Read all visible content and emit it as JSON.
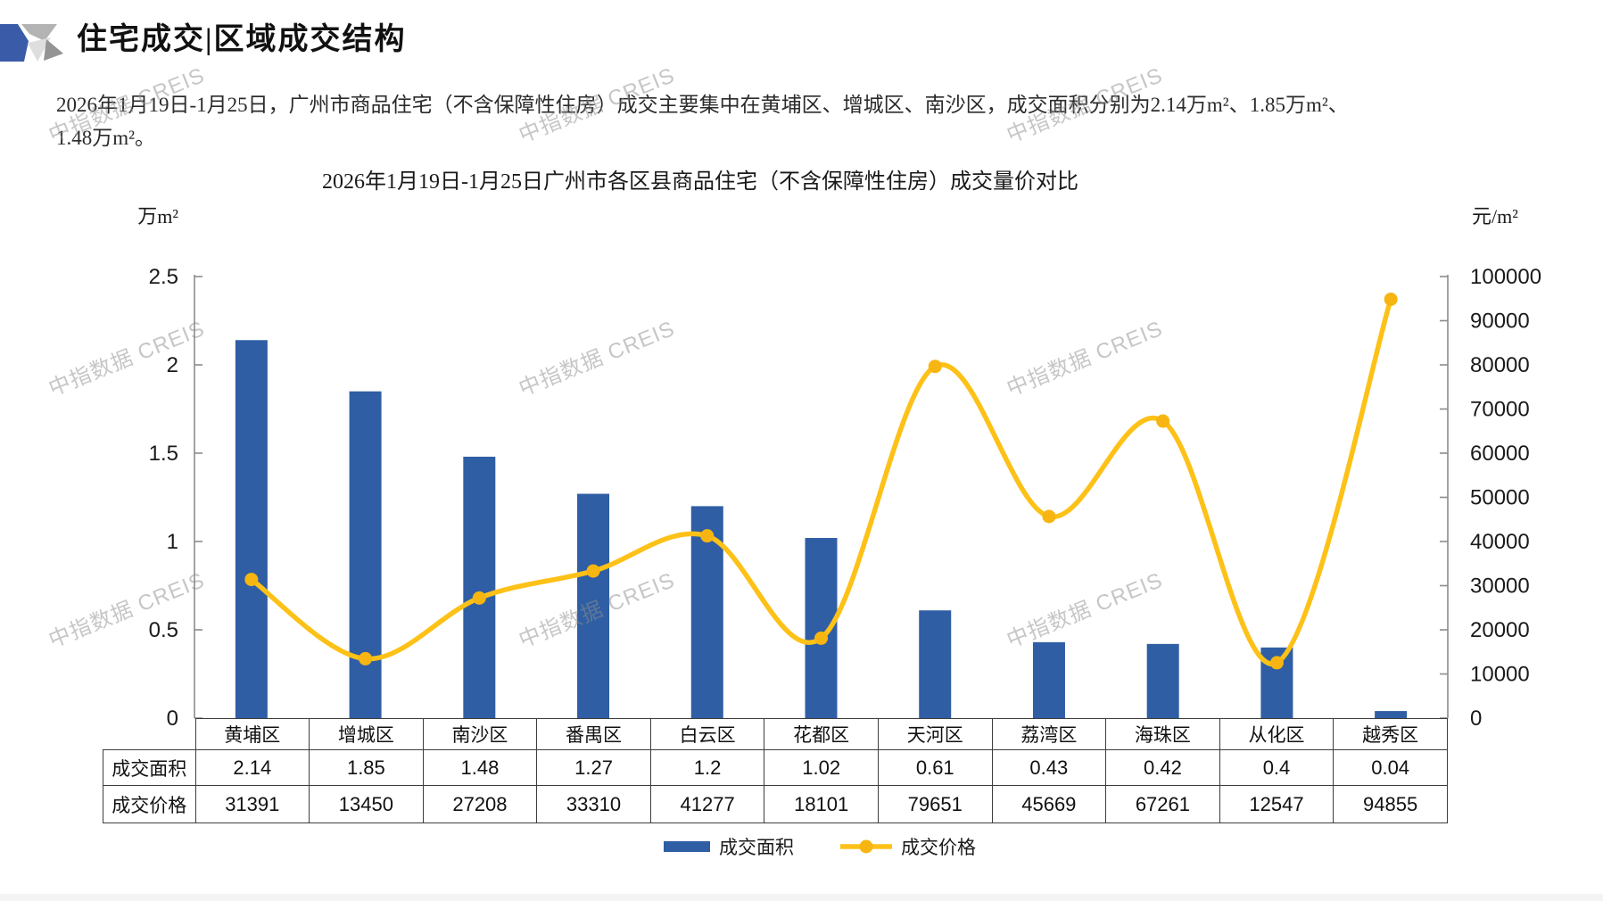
{
  "header": {
    "title": "住宅成交|区域成交结构"
  },
  "summary": "2026年1月19日-1月25日，广州市商品住宅（不含保障性住房）成交主要集中在黄埔区、增城区、南沙区，成交面积分别为2.14万m²、1.85万m²、1.48万m²。",
  "watermark_text": "中指数据 CREIS",
  "colors": {
    "bar": "#2F5EA4",
    "line": "#FDC117",
    "marker": "#F7B511",
    "axis": "#8c8c8c",
    "table_border": "#3d3d3d"
  },
  "chart_data": {
    "type": "bar",
    "title": "2026年1月19日-1月25日广州市各区县商品住宅（不含保障性住房）成交量价对比",
    "categories": [
      "黄埔区",
      "增城区",
      "南沙区",
      "番禺区",
      "白云区",
      "花都区",
      "天河区",
      "荔湾区",
      "海珠区",
      "从化区",
      "越秀区"
    ],
    "series": [
      {
        "name": "成交面积",
        "type": "bar",
        "axis": "left",
        "color": "#2F5EA4",
        "values": [
          2.14,
          1.85,
          1.48,
          1.27,
          1.2,
          1.02,
          0.61,
          0.43,
          0.42,
          0.4,
          0.04
        ]
      },
      {
        "name": "成交价格",
        "type": "line",
        "axis": "right",
        "color": "#FDC117",
        "values": [
          31391,
          13450,
          27208,
          33310,
          41277,
          18101,
          79651,
          45669,
          67261,
          12547,
          94855
        ]
      }
    ],
    "left_axis": {
      "label": "万m²",
      "min": 0,
      "max": 2.5,
      "step": 0.5
    },
    "right_axis": {
      "label": "元/m²",
      "min": 0,
      "max": 100000,
      "step": 10000
    },
    "grid": false,
    "legend_position": "bottom",
    "data_table_rows": [
      "成交面积",
      "成交价格"
    ]
  }
}
